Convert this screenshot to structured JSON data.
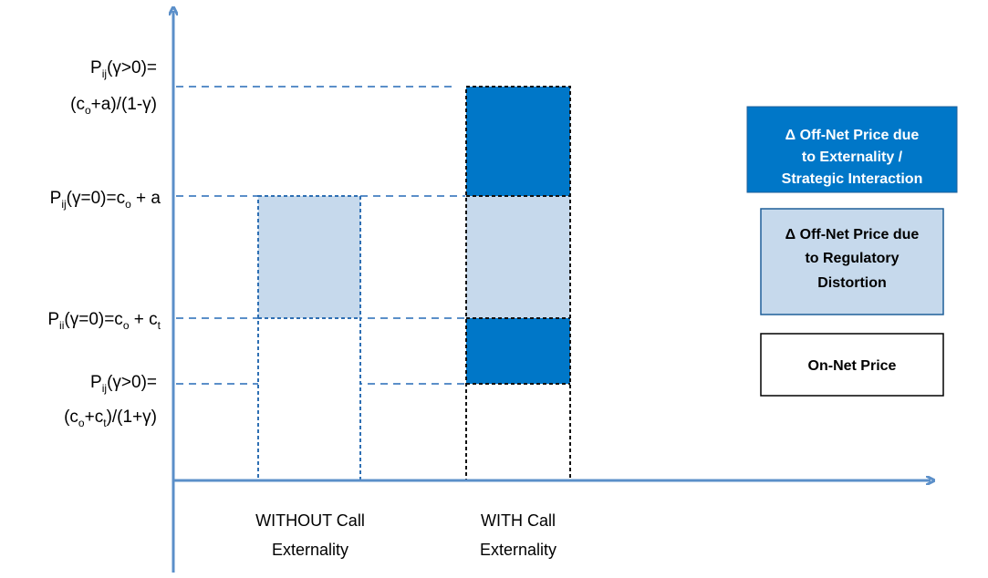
{
  "y_labels": [
    {
      "line1": "P",
      "line1_sub": "ij",
      "line1_rest": "(γ>0)=",
      "line2_a": "(c",
      "line2_sub": "o",
      "line2_b": "+a)/(1-γ)"
    },
    {
      "a": "P",
      "a_sub": "ij",
      "b": "(γ=0)=c",
      "b_sub": "o",
      "c": " + a"
    },
    {
      "a": "P",
      "a_sub": "ii",
      "b": "(γ=0)=c",
      "b_sub": "o",
      "c": " + c",
      "c_sub": "t"
    },
    {
      "line1": "P",
      "line1_sub": "ij",
      "line1_rest": "(γ>0)=",
      "line2_a": "(c",
      "line2_sub": "o",
      "line2_b": "+c",
      "line2_sub2": "t",
      "line2_c": ")/(1+γ)"
    }
  ],
  "categories": [
    {
      "line1": "WITHOUT Call",
      "line2": "Externality"
    },
    {
      "line1": "WITH Call",
      "line2": "Externality"
    }
  ],
  "legend": [
    {
      "lines": [
        "Δ Off-Net Price due",
        "to Externality /",
        "Strategic Interaction"
      ],
      "fill": "#0077c8",
      "text_color": "#ffffff"
    },
    {
      "lines": [
        "Δ Off-Net Price due",
        "to Regulatory",
        "Distortion"
      ],
      "fill": "#c6d9ec",
      "text_color": "#000000"
    },
    {
      "lines": [
        "On-Net Price"
      ],
      "fill": "#ffffff",
      "text_color": "#000000"
    }
  ],
  "colors": {
    "axis": "#5b8fc9",
    "dashed_guide": "#5b8fc9",
    "externality": "#0077c8",
    "regulatory": "#c6d9ec",
    "on_net": "#ffffff"
  }
}
